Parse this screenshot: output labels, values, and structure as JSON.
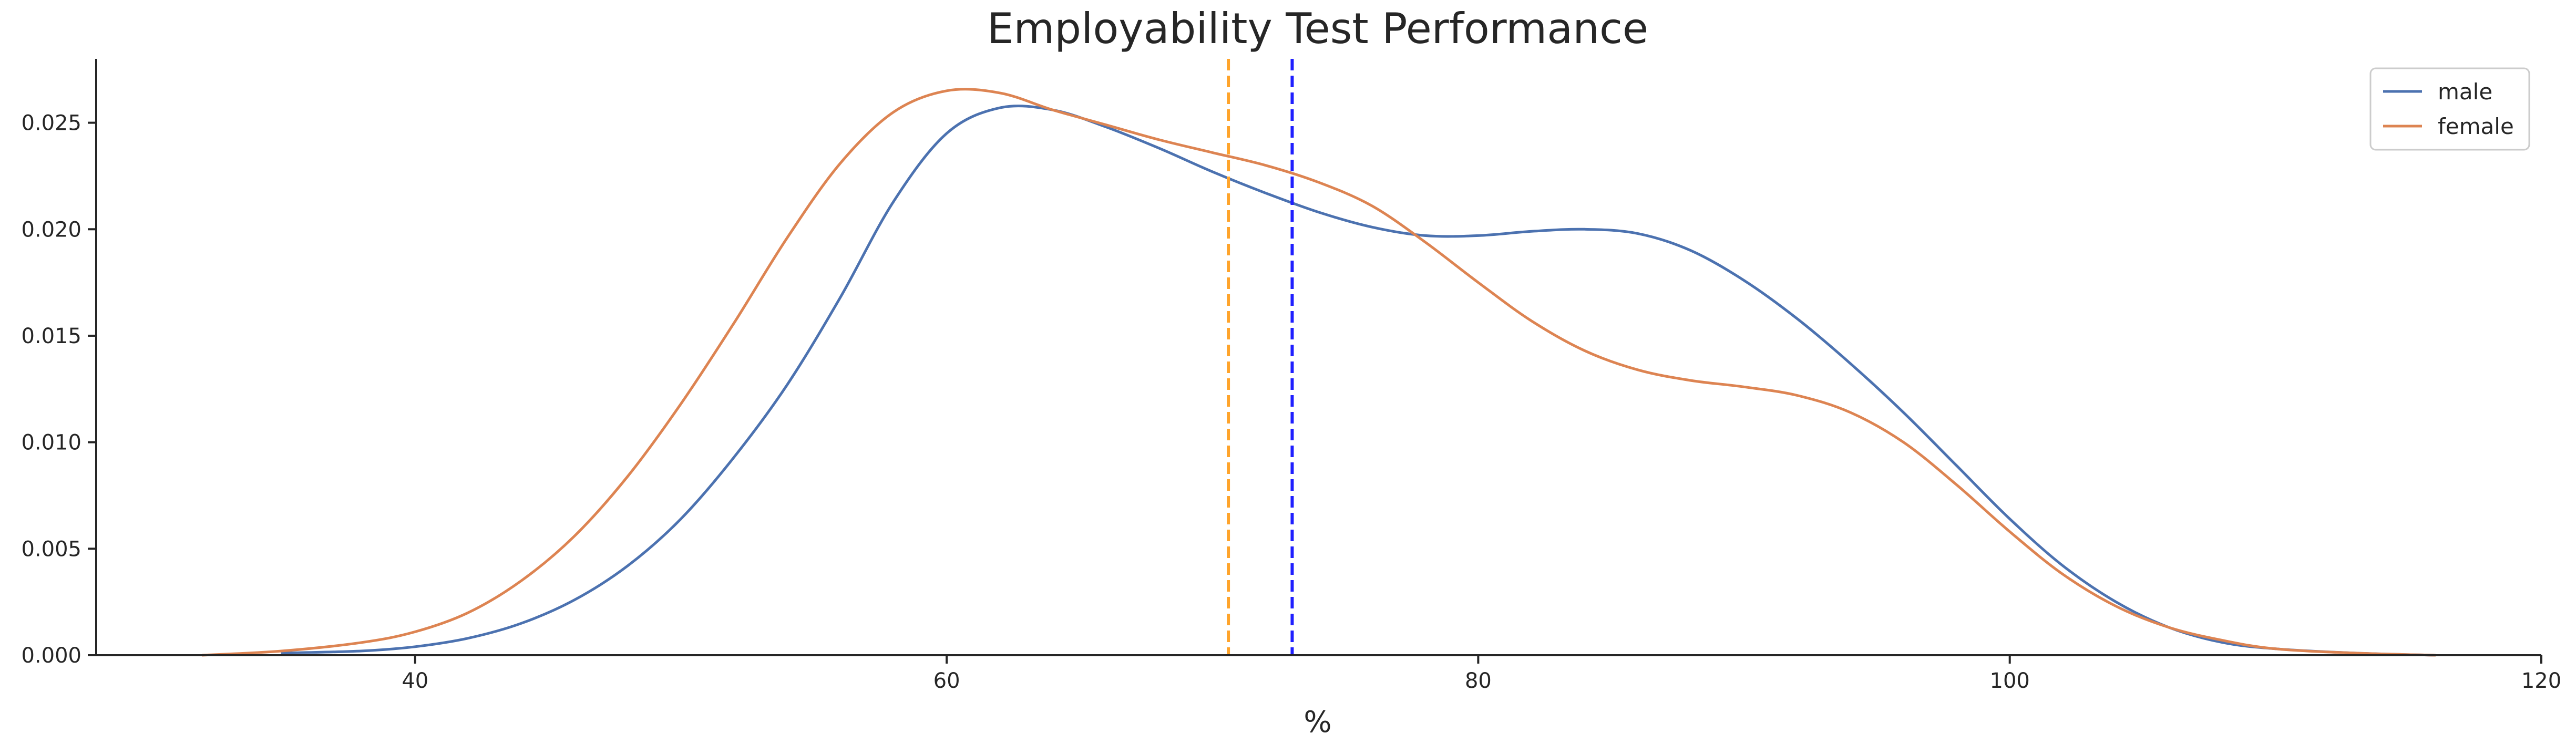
{
  "chart_data": {
    "type": "line",
    "title": "Employability Test Performance",
    "xlabel": "%",
    "ylabel": "",
    "xlim": [
      28,
      120
    ],
    "ylim": [
      0,
      0.028
    ],
    "x_ticks": [
      {
        "value": 40,
        "label": "40"
      },
      {
        "value": 60,
        "label": "60"
      },
      {
        "value": 80,
        "label": "80"
      },
      {
        "value": 100,
        "label": "100"
      },
      {
        "value": 120,
        "label": "120"
      }
    ],
    "y_ticks": [
      {
        "value": 0.0,
        "label": "0.000"
      },
      {
        "value": 0.005,
        "label": "0.005"
      },
      {
        "value": 0.01,
        "label": "0.010"
      },
      {
        "value": 0.015,
        "label": "0.015"
      },
      {
        "value": 0.02,
        "label": "0.020"
      },
      {
        "value": 0.025,
        "label": "0.025"
      }
    ],
    "grid": false,
    "legend": {
      "position": "top-right"
    },
    "series": [
      {
        "name": "male",
        "color": "#4c72b0",
        "x": [
          35,
          38,
          40,
          42,
          44,
          46,
          48,
          50,
          52,
          54,
          56,
          58,
          60,
          62,
          64,
          66,
          68,
          70,
          72,
          74,
          76,
          78,
          80,
          82,
          84,
          86,
          88,
          90,
          92,
          94,
          96,
          98,
          100,
          102,
          104,
          106,
          108,
          110,
          113,
          116
        ],
        "y": [
          0.0001,
          0.0002,
          0.0004,
          0.0008,
          0.0015,
          0.0026,
          0.0042,
          0.0064,
          0.0093,
          0.0127,
          0.0168,
          0.0213,
          0.0245,
          0.0257,
          0.0256,
          0.0248,
          0.0238,
          0.0227,
          0.0217,
          0.0208,
          0.0201,
          0.0197,
          0.0197,
          0.0199,
          0.02,
          0.0198,
          0.019,
          0.0176,
          0.0158,
          0.0137,
          0.0114,
          0.0089,
          0.0064,
          0.0042,
          0.0025,
          0.0013,
          0.0006,
          0.0003,
          0.0001,
          0.0
        ]
      },
      {
        "name": "female",
        "color": "#dd8452",
        "x": [
          32,
          35,
          38,
          40,
          42,
          44,
          46,
          48,
          50,
          52,
          54,
          56,
          58,
          60,
          62,
          64,
          66,
          68,
          70,
          72,
          74,
          76,
          78,
          80,
          82,
          84,
          86,
          88,
          90,
          92,
          94,
          96,
          98,
          100,
          102,
          104,
          106,
          108,
          110,
          113,
          116
        ],
        "y": [
          0.0,
          0.0002,
          0.0006,
          0.0011,
          0.002,
          0.0035,
          0.0056,
          0.0084,
          0.0118,
          0.0156,
          0.0196,
          0.0231,
          0.0255,
          0.0265,
          0.0264,
          0.0256,
          0.0249,
          0.0242,
          0.0236,
          0.023,
          0.0222,
          0.0211,
          0.0194,
          0.0175,
          0.0157,
          0.0143,
          0.0134,
          0.0129,
          0.0126,
          0.0122,
          0.0114,
          0.01,
          0.008,
          0.0058,
          0.0038,
          0.0023,
          0.0013,
          0.0007,
          0.0003,
          0.0001,
          0.0
        ]
      }
    ],
    "reference_lines": [
      {
        "x": 70.6,
        "color": "#ffa42b",
        "style": "dashed"
      },
      {
        "x": 73.0,
        "color": "#1f1fff",
        "style": "dashed"
      }
    ]
  }
}
